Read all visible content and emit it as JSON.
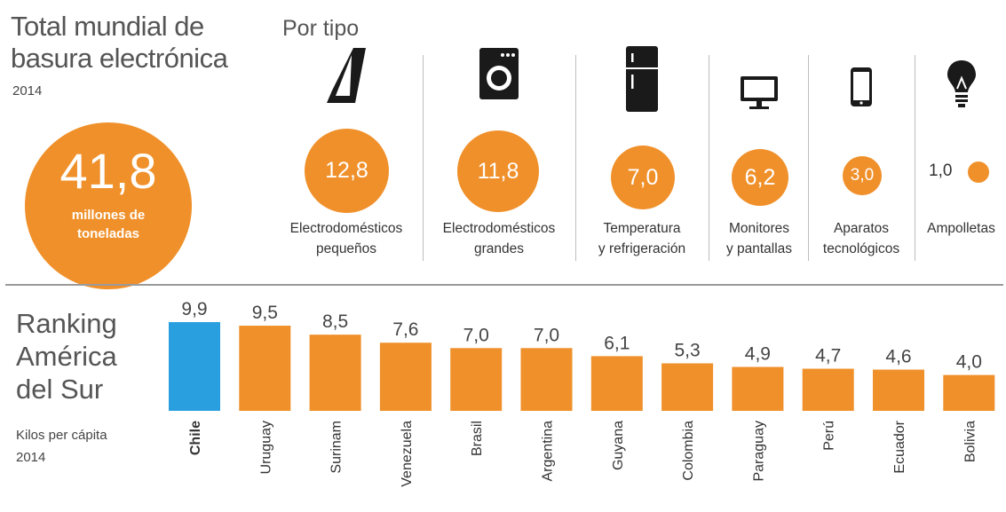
{
  "header": {
    "title_line1": "Total mundial de",
    "title_line2": "basura electrónica",
    "year": "2014",
    "total_value": "41,8",
    "total_unit_line1": "millones de",
    "total_unit_line2": "toneladas",
    "types_heading": "Por tipo"
  },
  "types": [
    {
      "icon": "iron-icon",
      "value": "12,8",
      "label1": "Electrodomésticos",
      "label2": "pequeños"
    },
    {
      "icon": "washing-machine-icon",
      "value": "11,8",
      "label1": "Electrodomésticos",
      "label2": "grandes"
    },
    {
      "icon": "refrigerator-icon",
      "value": "7,0",
      "label1": "Temperatura",
      "label2": "y refrigeración"
    },
    {
      "icon": "monitor-icon",
      "value": "6,2",
      "label1": "Monitores",
      "label2": "y pantallas"
    },
    {
      "icon": "smartphone-icon",
      "value": "3,0",
      "label1": "Aparatos",
      "label2": "tecnológicos"
    },
    {
      "icon": "light-bulb-icon",
      "value": "1,0",
      "label1": "Ampolletas",
      "label2": ""
    }
  ],
  "ranking": {
    "title_line1": "Ranking",
    "title_line2": "América",
    "title_line3": "del Sur",
    "unit": "Kilos per cápita",
    "year": "2014"
  },
  "colors": {
    "orange": "#f0902a",
    "highlight": "#2a9fe0",
    "text": "#333333"
  },
  "chart_data": {
    "type": "bar",
    "categories": [
      "Chile",
      "Uruguay",
      "Surinam",
      "Venezuela",
      "Brasil",
      "Argentina",
      "Guyana",
      "Colombia",
      "Paraguay",
      "Perú",
      "Ecuador",
      "Bolivia"
    ],
    "values": [
      9.9,
      9.5,
      8.5,
      7.6,
      7.0,
      7.0,
      6.1,
      5.3,
      4.9,
      4.7,
      4.6,
      4.0
    ],
    "value_labels": [
      "9,9",
      "9,5",
      "8,5",
      "7,6",
      "7,0",
      "7,0",
      "6,1",
      "5,3",
      "4,9",
      "4,7",
      "4,6",
      "4,0"
    ],
    "highlight_category": "Chile",
    "ylim": [
      0,
      9.9
    ],
    "grid": false,
    "legend": "none"
  }
}
